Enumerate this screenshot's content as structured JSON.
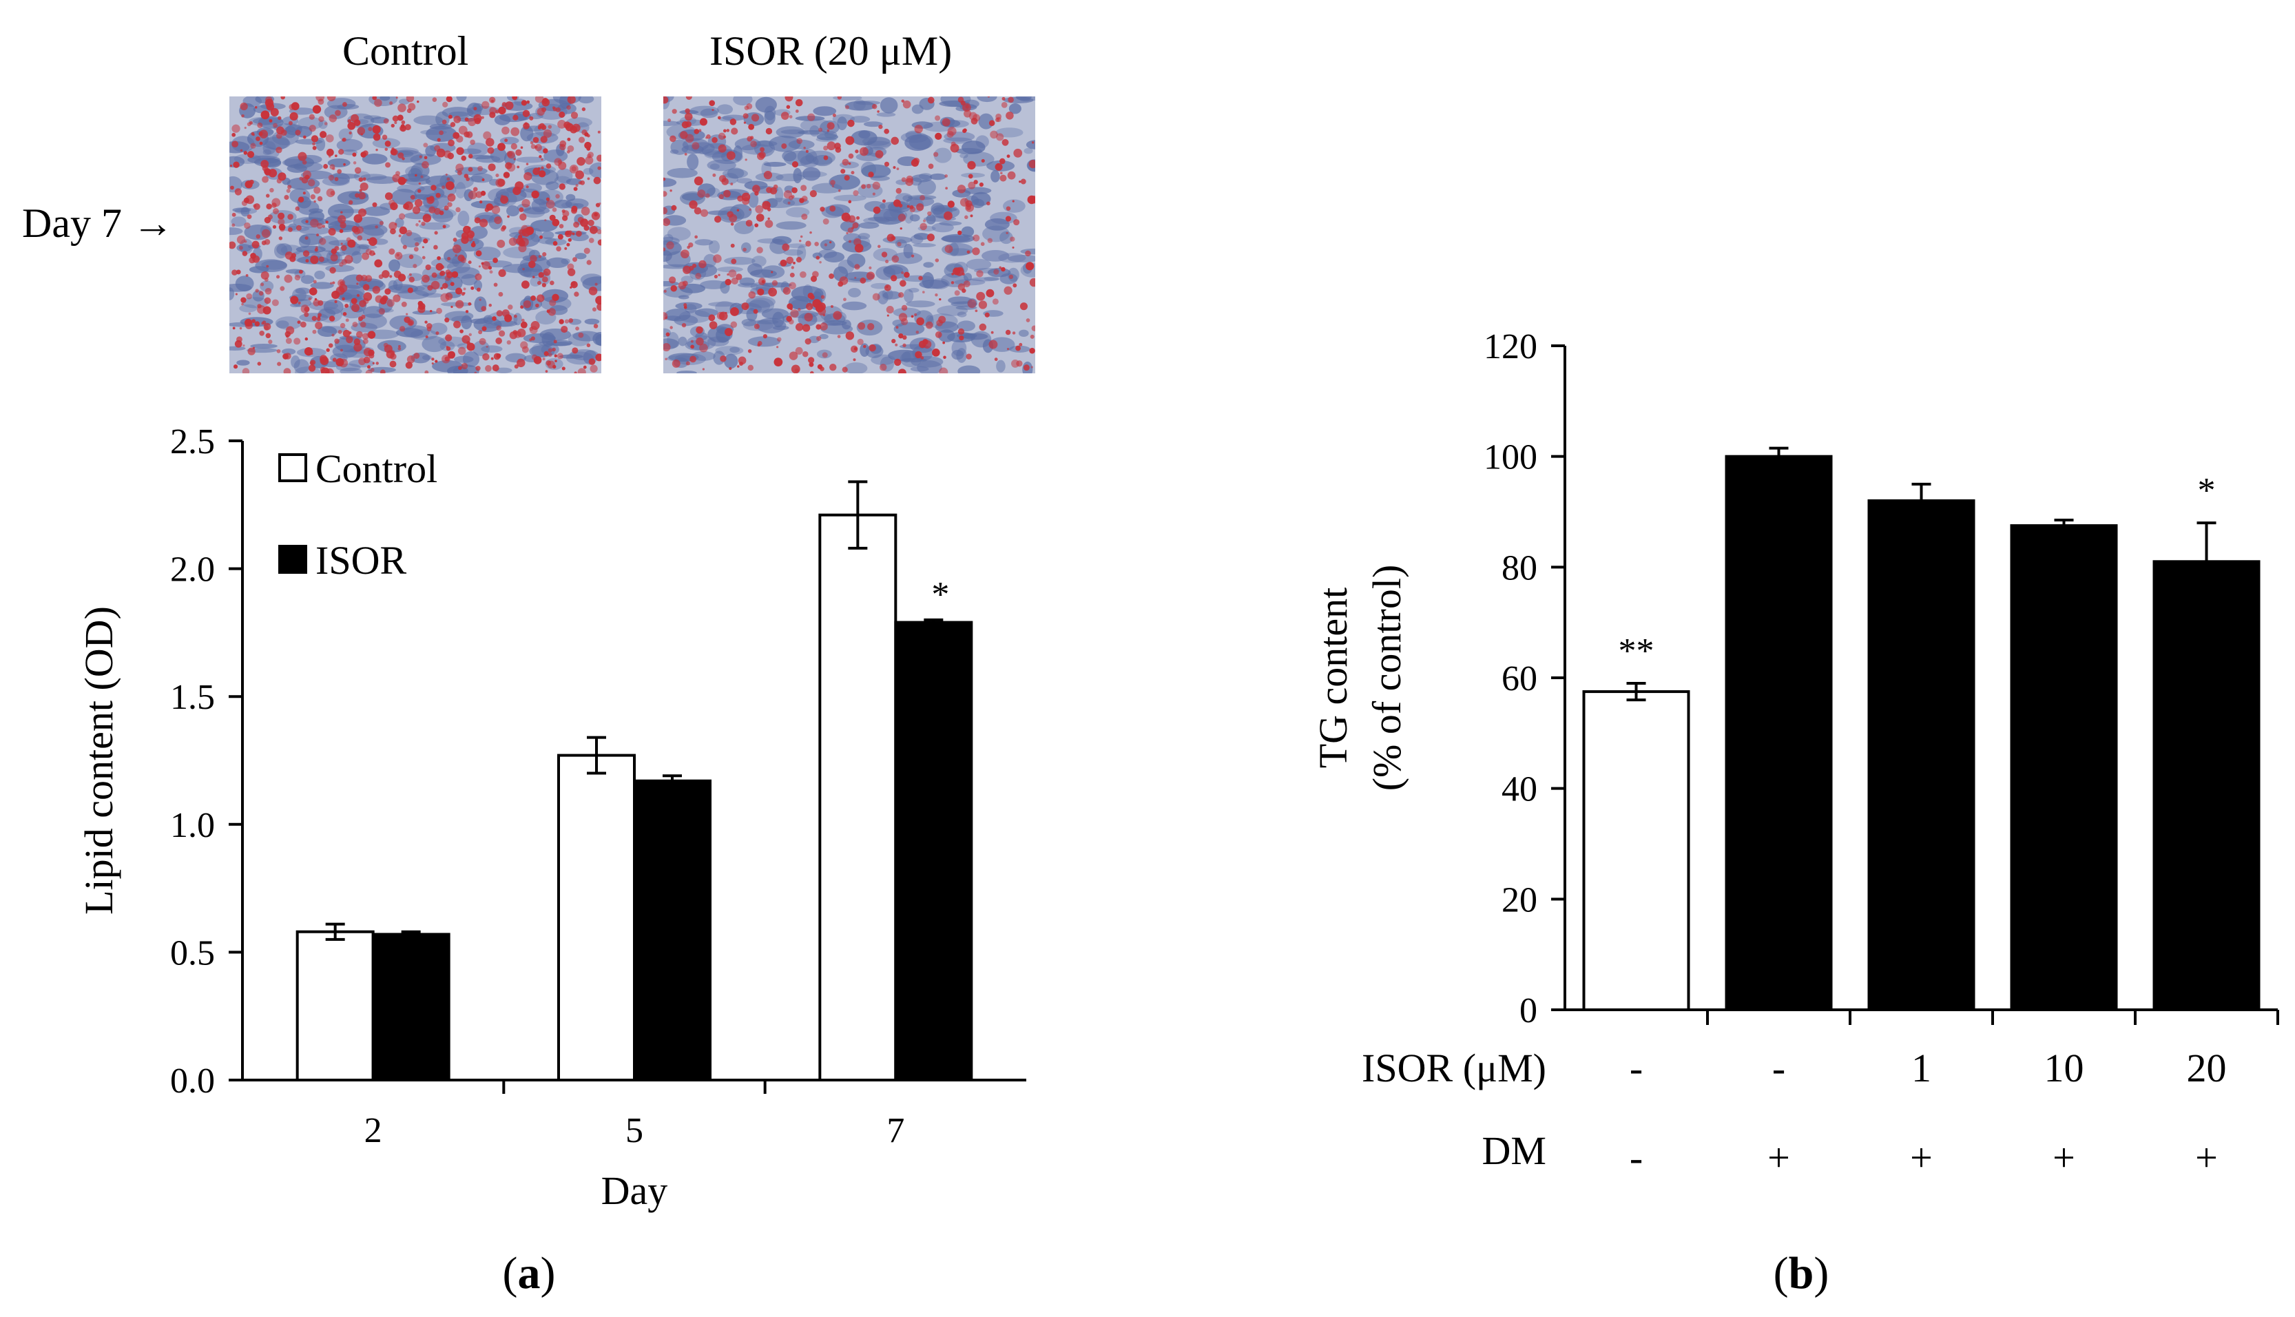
{
  "panel_a": {
    "micrographs": {
      "row_label": "Day 7 →",
      "columns": [
        {
          "label": "Control",
          "stain_density": "high"
        },
        {
          "label": "ISOR (20 μM)",
          "stain_density": "lower"
        }
      ],
      "colors": {
        "background": "#b9c0d6",
        "cells": "#5b6ea6",
        "lipid": "#c8323a"
      }
    },
    "caption_letter": "a"
  },
  "panel_b": {
    "caption_letter": "b"
  },
  "chart_data": [
    {
      "id": "lipid",
      "type": "bar",
      "title": "",
      "xlabel": "Day",
      "ylabel": "Lipid content (OD)",
      "categories": [
        "2",
        "5",
        "7"
      ],
      "ylim": [
        0,
        2.5
      ],
      "yticks": [
        0,
        0.5,
        1.0,
        1.5,
        2.0,
        2.5
      ],
      "ytick_labels": [
        "0.0",
        "0.5",
        "1.0",
        "1.5",
        "2.0",
        "2.5"
      ],
      "series": [
        {
          "name": "Control",
          "fill": "#ffffff",
          "values": [
            0.58,
            1.27,
            2.21
          ],
          "errors": [
            0.03,
            0.07,
            0.13
          ],
          "annotations": [
            "",
            "",
            ""
          ]
        },
        {
          "name": "ISOR",
          "fill": "#000000",
          "values": [
            0.57,
            1.17,
            1.79
          ],
          "errors": [
            0.01,
            0.02,
            0.01
          ],
          "annotations": [
            "",
            "",
            "*"
          ]
        }
      ],
      "legend": {
        "position": "top-left",
        "entries": [
          "Control",
          "ISOR"
        ]
      },
      "grid": false
    },
    {
      "id": "tg",
      "type": "bar",
      "title": "",
      "ylabel_lines": [
        "TG content",
        "(% of control)"
      ],
      "ylim": [
        0,
        120
      ],
      "yticks": [
        0,
        20,
        40,
        60,
        80,
        100,
        120
      ],
      "ytick_labels": [
        "0",
        "20",
        "40",
        "60",
        "80",
        "100",
        "120"
      ],
      "row_labels": {
        "isor": "ISOR (μM)",
        "dm": "DM"
      },
      "isor_values": [
        "-",
        "-",
        "1",
        "10",
        "20"
      ],
      "dm_values": [
        "-",
        "+",
        "+",
        "+",
        "+"
      ],
      "values": [
        57.5,
        100,
        92,
        87.5,
        81
      ],
      "errors": [
        1.5,
        1.5,
        3,
        1,
        7
      ],
      "fills": [
        "#ffffff",
        "#000000",
        "#000000",
        "#000000",
        "#000000"
      ],
      "annotations": [
        "**",
        "",
        "",
        "",
        "*"
      ],
      "grid": false
    }
  ]
}
